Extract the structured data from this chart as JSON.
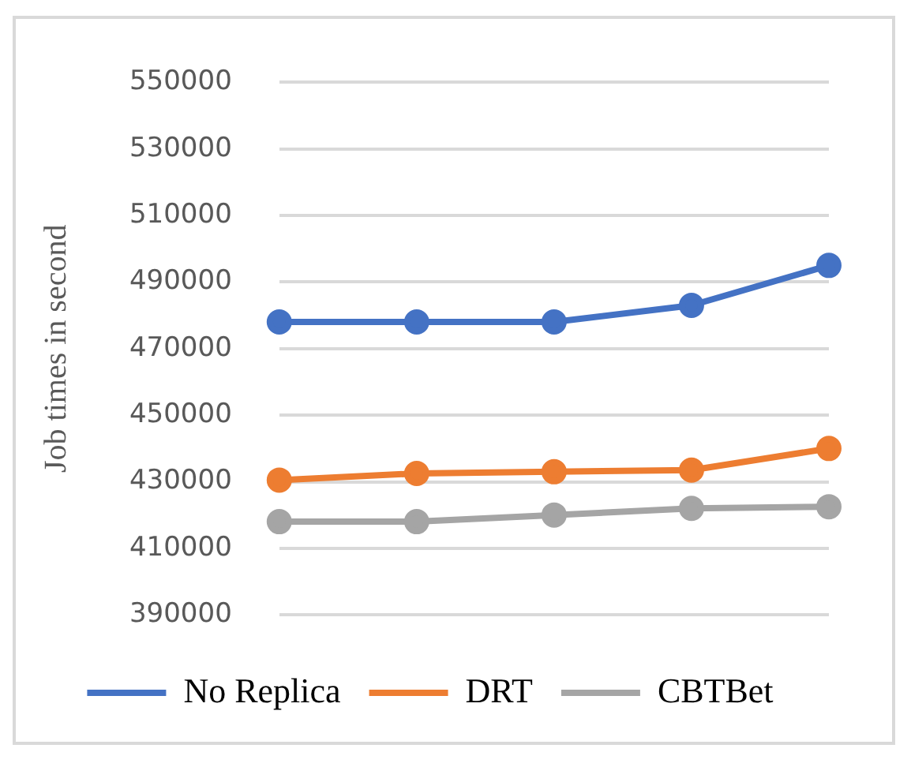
{
  "chart_data": {
    "type": "line",
    "ylabel": "Job times in second",
    "categories": [
      null,
      null,
      null,
      null,
      null
    ],
    "series": [
      {
        "name": "No Replica",
        "color": "#4472c4",
        "values": [
          478000,
          478000,
          478000,
          483000,
          495000
        ]
      },
      {
        "name": "DRT",
        "color": "#ed7d31",
        "values": [
          430500,
          432500,
          433000,
          433500,
          440000
        ]
      },
      {
        "name": "CBTBet",
        "color": "#a5a5a5",
        "values": [
          418000,
          418000,
          420000,
          422000,
          422500
        ]
      }
    ],
    "ylim": [
      390000,
      550000
    ],
    "yticks": [
      390000,
      410000,
      430000,
      450000,
      470000,
      490000,
      510000,
      530000,
      550000
    ],
    "grid": "y",
    "legend": "bottom",
    "marker": "circle",
    "line_style": "solid"
  }
}
